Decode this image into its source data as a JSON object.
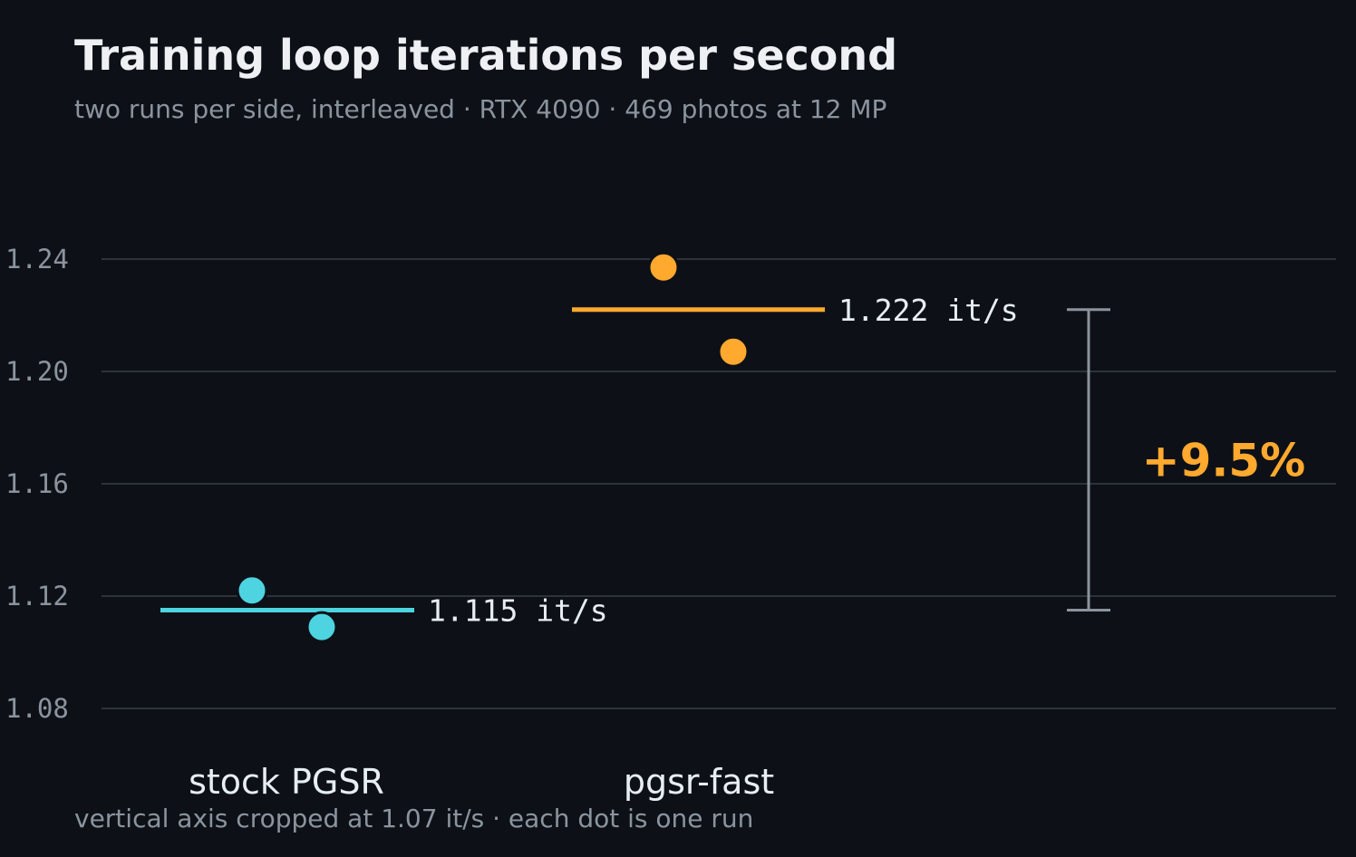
{
  "header": {
    "title": "Training loop iterations per second",
    "subtitle": "two runs per side, interleaved · RTX 4090 · 469 photos at 12 MP"
  },
  "footer": {
    "note": "vertical axis cropped at 1.07 it/s · each dot is one run"
  },
  "colors": {
    "background": "#0d1117",
    "grid": "#2d333b",
    "stock": "#4dd4e0",
    "fast": "#ffa92e",
    "bracket": "#8b949e"
  },
  "chart_data": {
    "type": "scatter",
    "title": "Training loop iterations per second",
    "subtitle": "two runs per side, interleaved · RTX 4090 · 469 photos at 12 MP",
    "categories": [
      "stock PGSR",
      "pgsr-fast"
    ],
    "series": [
      {
        "name": "stock PGSR",
        "runs": [
          1.122,
          1.109
        ],
        "mean": 1.115,
        "mean_label": "1.115 it/s",
        "color": "#4dd4e0"
      },
      {
        "name": "pgsr-fast",
        "runs": [
          1.237,
          1.207
        ],
        "mean": 1.222,
        "mean_label": "1.222 it/s",
        "color": "#ffa92e"
      }
    ],
    "yticks": [
      "1.08",
      "1.12",
      "1.16",
      "1.20",
      "1.24"
    ],
    "ylim": [
      1.07,
      1.265
    ],
    "grid": true,
    "annotation": {
      "from": 1.115,
      "to": 1.222,
      "label": "+9.5%"
    }
  }
}
